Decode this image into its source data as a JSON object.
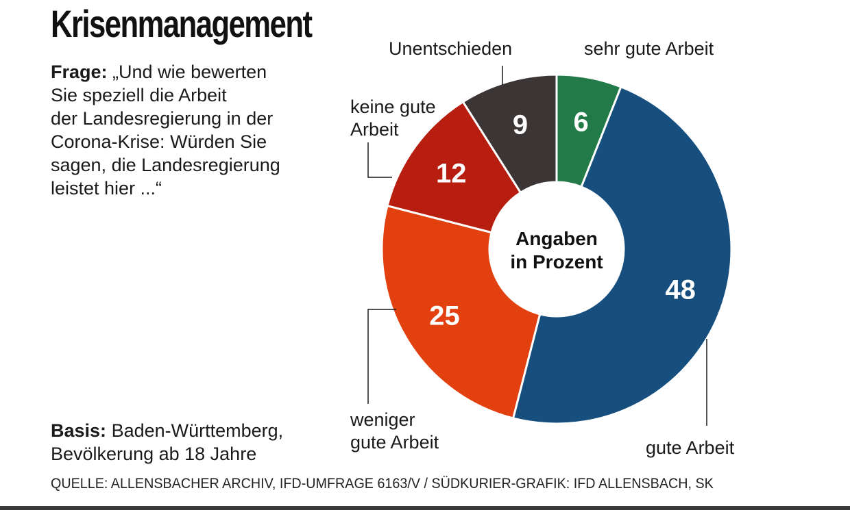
{
  "title": "Krisenmanagement",
  "question": {
    "lead": "Frage:",
    "lines": [
      "„Und wie bewerten",
      "Sie speziell die Arbeit",
      "der Landesregierung in der",
      "Corona-Krise: Würden Sie",
      "sagen, die Landesregierung",
      "leistet hier ...“"
    ]
  },
  "basis": {
    "lead": "Basis:",
    "lines": [
      "Baden-Württemberg,",
      "Bevölkerung ab 18 Jahre"
    ]
  },
  "source": "QUELLE: ALLENSBACHER ARCHIV, IFD-UMFRAGE 6163/V  / SÜDKURIER-GRAFIK: IFD ALLENSBACH, SK",
  "chart_data": {
    "type": "pie",
    "style": "donut",
    "center_label": [
      "Angaben",
      "in Prozent"
    ],
    "categories": [
      "sehr gute Arbeit",
      "gute Arbeit",
      "weniger gute Arbeit",
      "keine gute Arbeit",
      "Unentschieden"
    ],
    "category_label_lines": [
      [
        "sehr gute Arbeit"
      ],
      [
        "gute Arbeit"
      ],
      [
        "weniger",
        "gute Arbeit"
      ],
      [
        "keine gute",
        "Arbeit"
      ],
      [
        "Unentschieden"
      ]
    ],
    "values": [
      6,
      48,
      25,
      12,
      9
    ],
    "colors": [
      "#217a47",
      "#164f7e",
      "#e3400f",
      "#b71e10",
      "#3b3535"
    ],
    "start": "12 o'clock",
    "direction": "clockwise"
  }
}
